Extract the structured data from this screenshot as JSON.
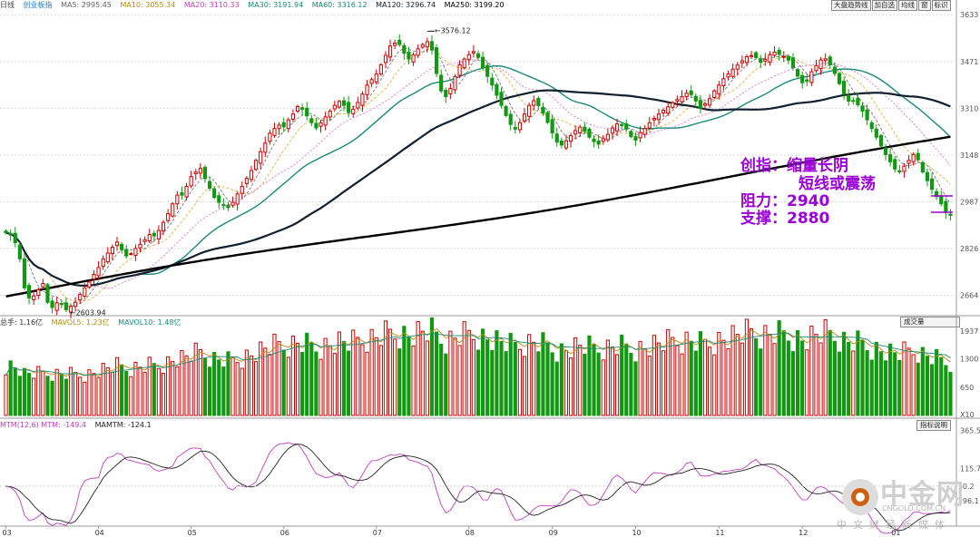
{
  "colors": {
    "up": "#d00000",
    "down": "#119911",
    "ma5": "#666666",
    "ma10": "#dcab2a",
    "ma20": "#e060d0",
    "ma30": "#2aa0a0",
    "ma60": "#1a8a7a",
    "ma120": "#102030",
    "ma250": "#000000",
    "ann": "#9b00d6"
  },
  "price_header": {
    "label": "日线",
    "index": "创业板指",
    "ma5": "MA5: 2995.45",
    "ma10": "MA10: 3055.34",
    "ma20": "MA20: 3110.33",
    "ma30": "MA30: 3191.94",
    "ma60": "MA60: 3316.12",
    "ma120": "MA120: 3296.74",
    "ma250": "MA250: 3199.20"
  },
  "toolbar": [
    "大盘趋势线",
    "加自选",
    "均线",
    "窗",
    "标识"
  ],
  "price_axis": [
    "3633",
    "3471",
    "3310",
    "3148",
    "2987",
    "2826",
    "2664"
  ],
  "high_label": "3576.12",
  "low_label": "2603.94",
  "annotation": {
    "line1": "创指：缩量长阴",
    "line2": "短线或震荡",
    "line3": "阻力：2940",
    "line4": "支撑：2880"
  },
  "volume_header": {
    "total": "总手: 1.16亿",
    "mavol5": "MAVOL5: 1.23亿",
    "mavol10": "MAVOL10: 1.48亿"
  },
  "volume_button": "成交量",
  "volume_axis": [
    "1937",
    "1300",
    "650"
  ],
  "volume_unit": "X10",
  "mtm_header": {
    "mtm": "MTM(12,6) MTM: -149.4",
    "mamtm": "MAMTM: -124.1"
  },
  "mtm_button": "指标说明",
  "mtm_axis": [
    "365.5",
    "115.7",
    "-0.2",
    "-96.1"
  ],
  "months": [
    "03",
    "04",
    "05",
    "06",
    "07",
    "08",
    "09",
    "10",
    "11",
    "12",
    "01"
  ],
  "logo": {
    "name": "中金网",
    "url": "CNGOLD.COM.CN",
    "sub": "中文财经新媒体"
  },
  "chart_data": {
    "type": "candlestick",
    "series_name": "创业板指",
    "y_range": [
      2603.94,
      3633
    ],
    "closes": [
      2880,
      2872,
      2846,
      2790,
      2690,
      2655,
      2662,
      2683,
      2705,
      2640,
      2622,
      2638,
      2632,
      2614,
      2626,
      2640,
      2667,
      2690,
      2710,
      2736,
      2760,
      2790,
      2810,
      2830,
      2848,
      2822,
      2800,
      2808,
      2826,
      2840,
      2856,
      2874,
      2869,
      2888,
      2916,
      2946,
      2980,
      3010,
      3010,
      3040,
      3074,
      3090,
      3102,
      3067,
      3034,
      3002,
      2985,
      2975,
      2967,
      2985,
      3014,
      3040,
      3068,
      3095,
      3130,
      3160,
      3190,
      3224,
      3240,
      3252,
      3246,
      3270,
      3290,
      3316,
      3306,
      3284,
      3260,
      3242,
      3260,
      3280,
      3300,
      3320,
      3334,
      3320,
      3295,
      3307,
      3330,
      3359,
      3390,
      3409,
      3428,
      3460,
      3493,
      3525,
      3535,
      3530,
      3500,
      3480,
      3495,
      3515,
      3530,
      3540,
      3511,
      3430,
      3370,
      3350,
      3378,
      3420,
      3460,
      3480,
      3495,
      3506,
      3486,
      3450,
      3420,
      3390,
      3355,
      3320,
      3285,
      3254,
      3238,
      3260,
      3290,
      3320,
      3336,
      3319,
      3293,
      3261,
      3225,
      3193,
      3183,
      3198,
      3215,
      3233,
      3245,
      3230,
      3210,
      3195,
      3186,
      3205,
      3220,
      3242,
      3256,
      3250,
      3238,
      3212,
      3200,
      3226,
      3240,
      3260,
      3275,
      3290,
      3303,
      3315,
      3329,
      3340,
      3350,
      3362,
      3357,
      3335,
      3310,
      3325,
      3343,
      3370,
      3390,
      3412,
      3428,
      3445,
      3459,
      3474,
      3488,
      3492,
      3485,
      3469,
      3479,
      3495,
      3504,
      3496,
      3489,
      3476,
      3450,
      3421,
      3398,
      3403,
      3436,
      3457,
      3477,
      3481,
      3460,
      3430,
      3395,
      3360,
      3335,
      3335,
      3322,
      3300,
      3270,
      3240,
      3210,
      3180,
      3150,
      3125,
      3100,
      3090,
      3110,
      3130,
      3150,
      3132,
      3090,
      3060,
      3030,
      3005,
      2980,
      2950,
      2940
    ]
  }
}
